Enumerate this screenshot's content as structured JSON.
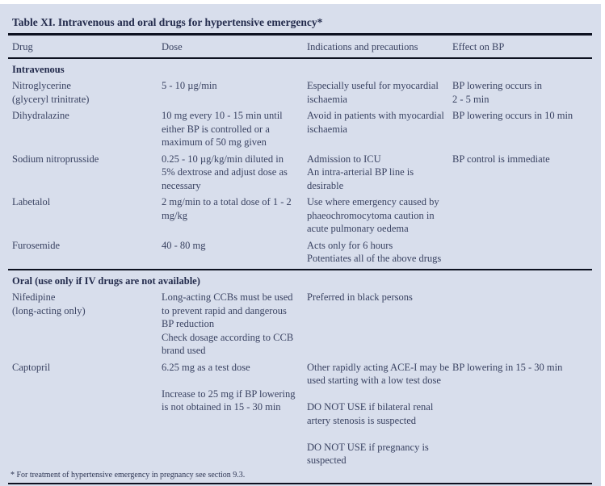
{
  "table": {
    "title": "Table XI. Intravenous and oral drugs for hypertensive emergency*",
    "columns": [
      "Drug",
      "Dose",
      "Indications and precautions",
      "Effect on BP"
    ],
    "sections": [
      {
        "header": "Intravenous",
        "rows": [
          {
            "drug": "Nitroglycerine\n(glyceryl trinitrate)",
            "dose": "5 - 10 µg/min",
            "indications": "Especially useful for myocardial\nischaemia",
            "effect": "BP lowering occurs in\n2 - 5 min"
          },
          {
            "drug": "Dihydralazine",
            "dose": "10 mg every 10 - 15 min until\neither BP is controlled or a\nmaximum of 50 mg given",
            "indications": "Avoid in patients with myocardial\nischaemia",
            "effect": "BP lowering occurs in 10 min"
          },
          {
            "drug": "Sodium nitroprusside",
            "dose": "0.25 - 10 µg/kg/min diluted in\n5% dextrose and adjust dose as\nnecessary",
            "indications": "Admission to ICU\nAn intra-arterial BP line is\ndesirable",
            "effect": "BP control is immediate"
          },
          {
            "drug": "Labetalol",
            "dose": "2 mg/min to a total dose of 1 - 2\nmg/kg",
            "indications": "Use where emergency caused by\nphaeochromocytoma caution in\nacute pulmonary oedema",
            "effect": ""
          },
          {
            "drug": "Furosemide",
            "dose": "40 - 80 mg",
            "indications": "Acts only for 6 hours\nPotentiates all of the above drugs",
            "effect": ""
          }
        ]
      },
      {
        "header": "Oral (use only if IV drugs are not available)",
        "rows": [
          {
            "drug": "Nifedipine\n(long-acting only)",
            "dose": "Long-acting CCBs must be used\nto prevent rapid and dangerous\nBP reduction\nCheck dosage according to CCB\nbrand used",
            "indications": "Preferred in black persons",
            "effect": ""
          },
          {
            "drug": "Captopril",
            "dose": "6.25 mg as a test dose\n\nIncrease to 25 mg if BP lowering\nis not obtained in 15 - 30 min",
            "indications": "Other rapidly acting ACE-I may be\nused starting with a low test dose\n\nDO NOT USE if bilateral renal\nartery stenosis is suspected\n\nDO NOT USE if pregnancy is\nsuspected",
            "effect": "BP lowering in 15 - 30 min"
          }
        ]
      }
    ],
    "footnote": "* For treatment of hypertensive emergency in pregnancy see section 9.3.",
    "colors": {
      "page_background": "#ffffff",
      "card_background": "#d8deec",
      "body_text": "#3a4362",
      "heading_text": "#232b4c",
      "rule": "#0d1120"
    }
  }
}
